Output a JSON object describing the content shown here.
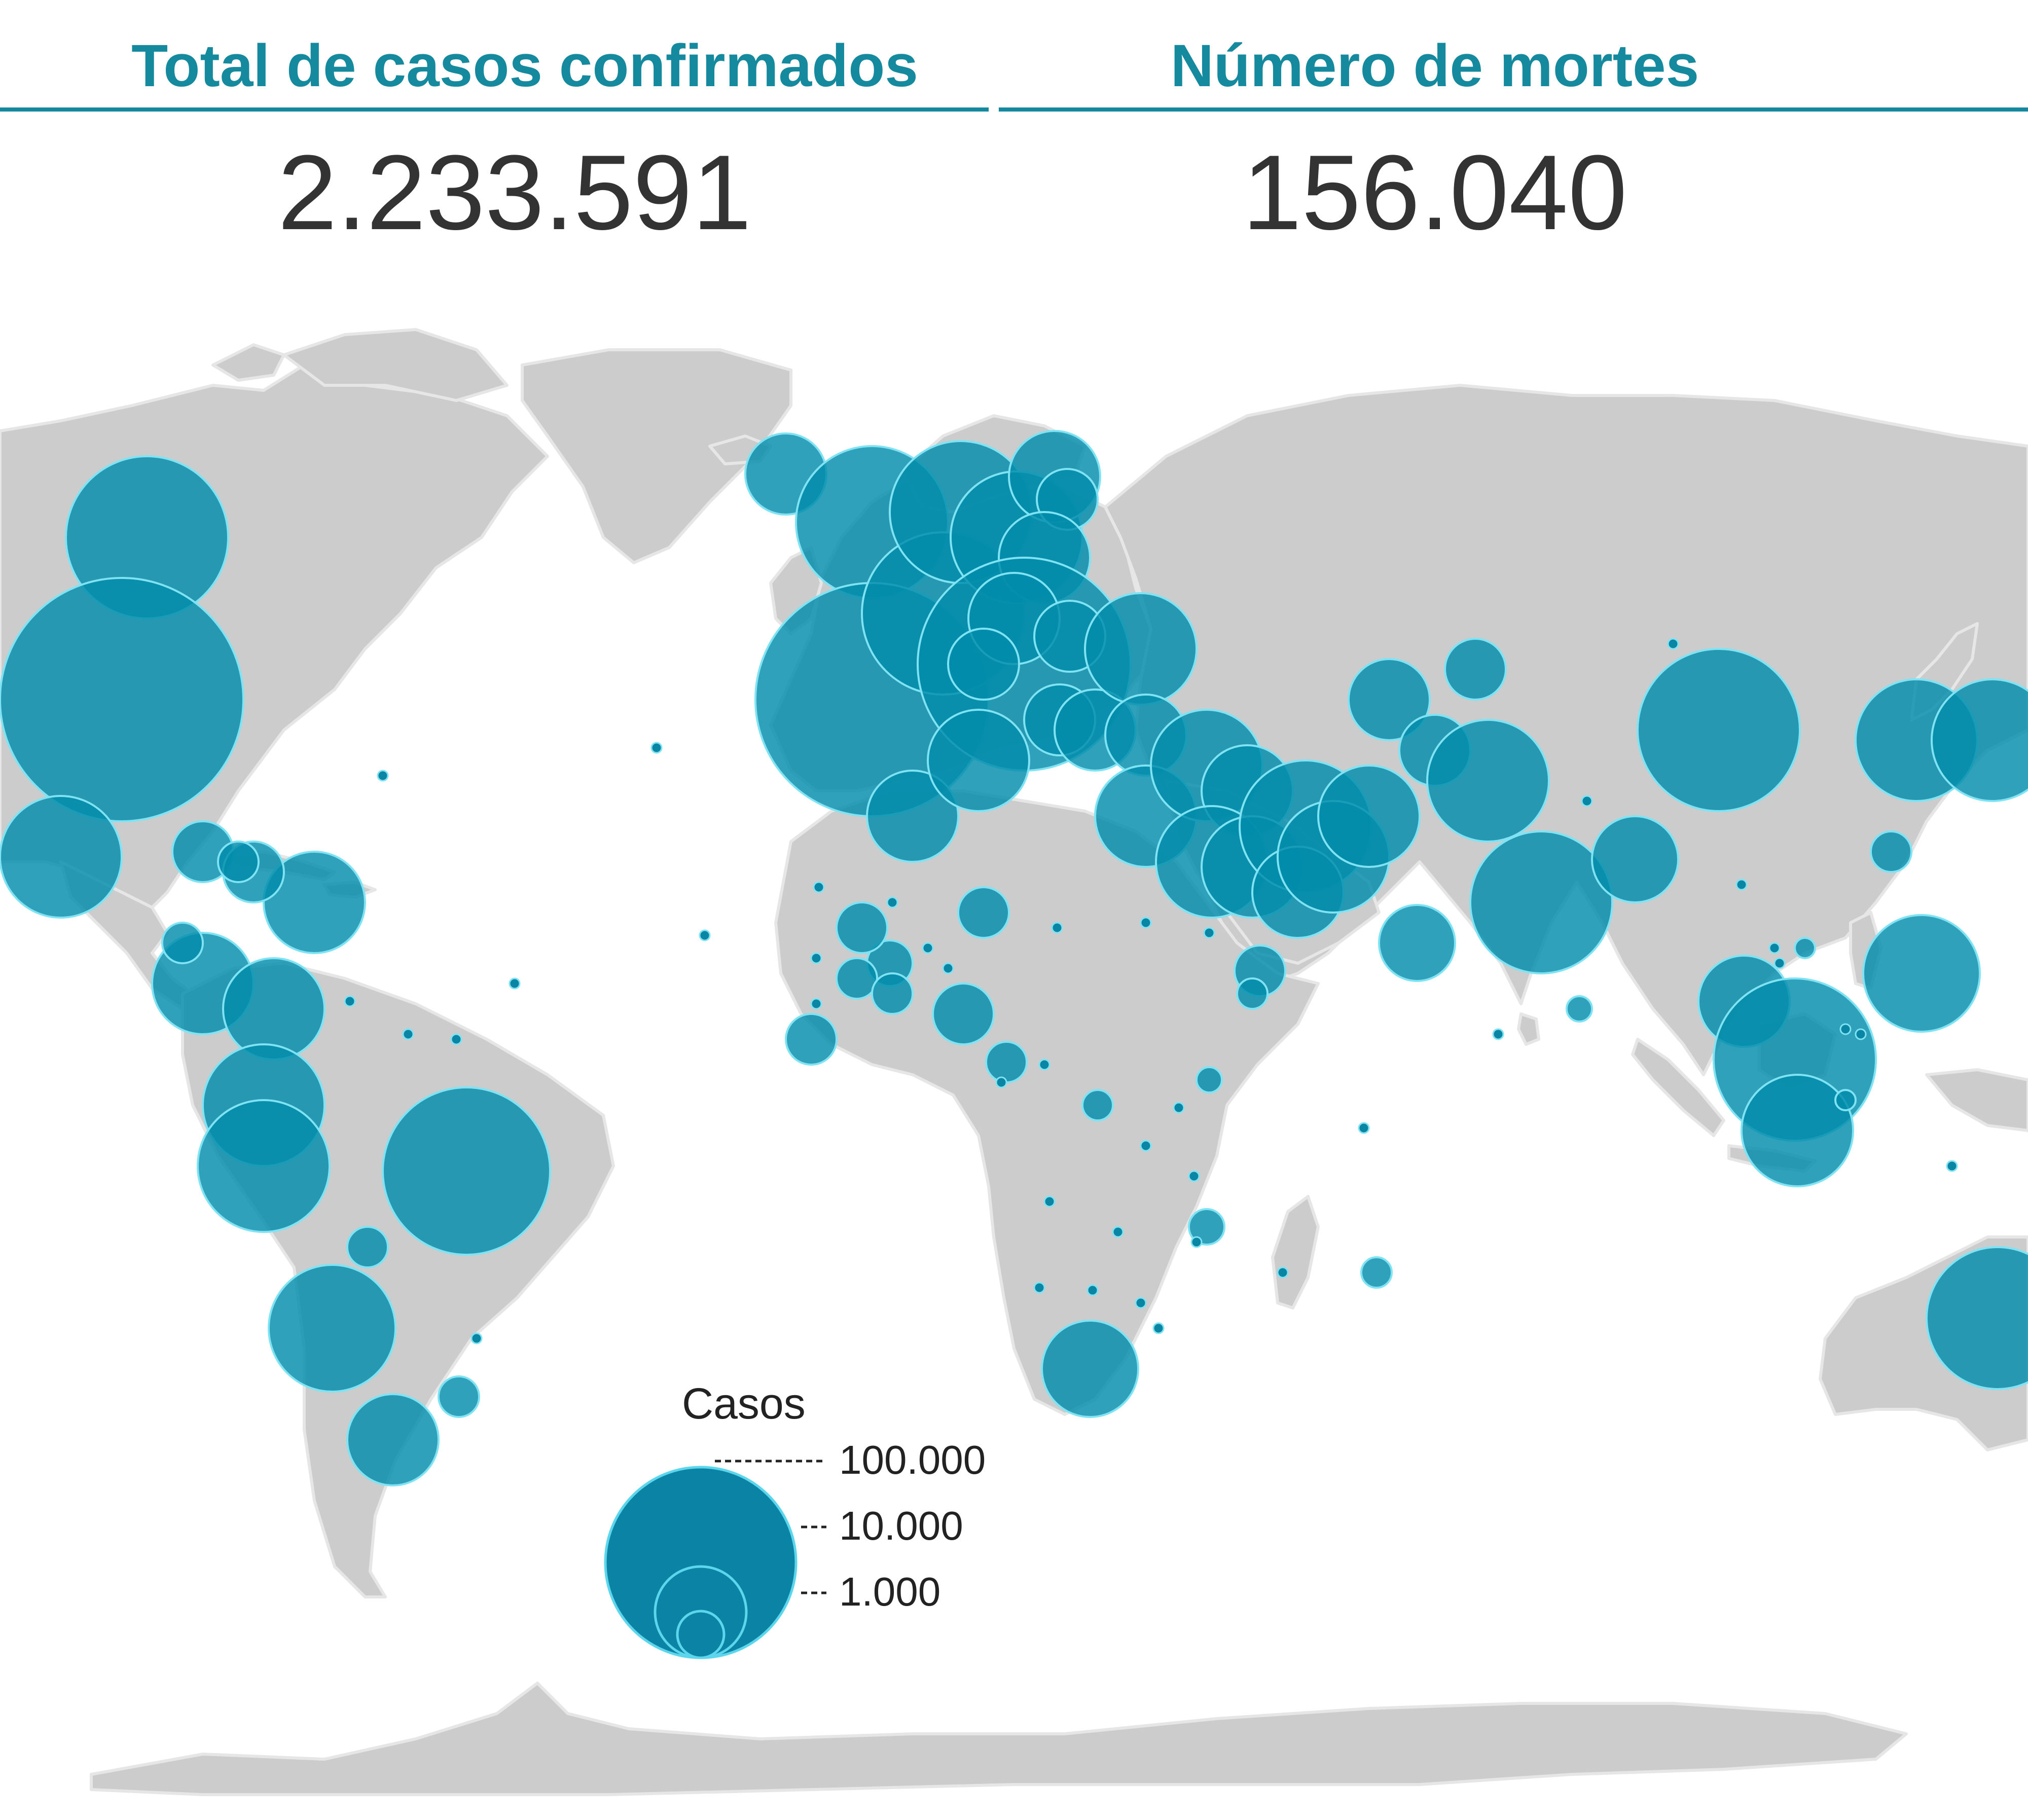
{
  "header": {
    "cases_title": "Total de casos confirmados",
    "cases_value": "2.233.591",
    "deaths_title": "Número de mortes",
    "deaths_value": "156.040"
  },
  "colors": {
    "accent": "#15899e",
    "bubble": "#0d8fac",
    "land": "#cccccc",
    "value_text": "#333333"
  },
  "legend": {
    "title": "Casos",
    "items": [
      {
        "label": "100.000",
        "value": 100000
      },
      {
        "label": "10.000",
        "value": 10000
      },
      {
        "label": "1.000",
        "value": 1000
      }
    ]
  }
}
